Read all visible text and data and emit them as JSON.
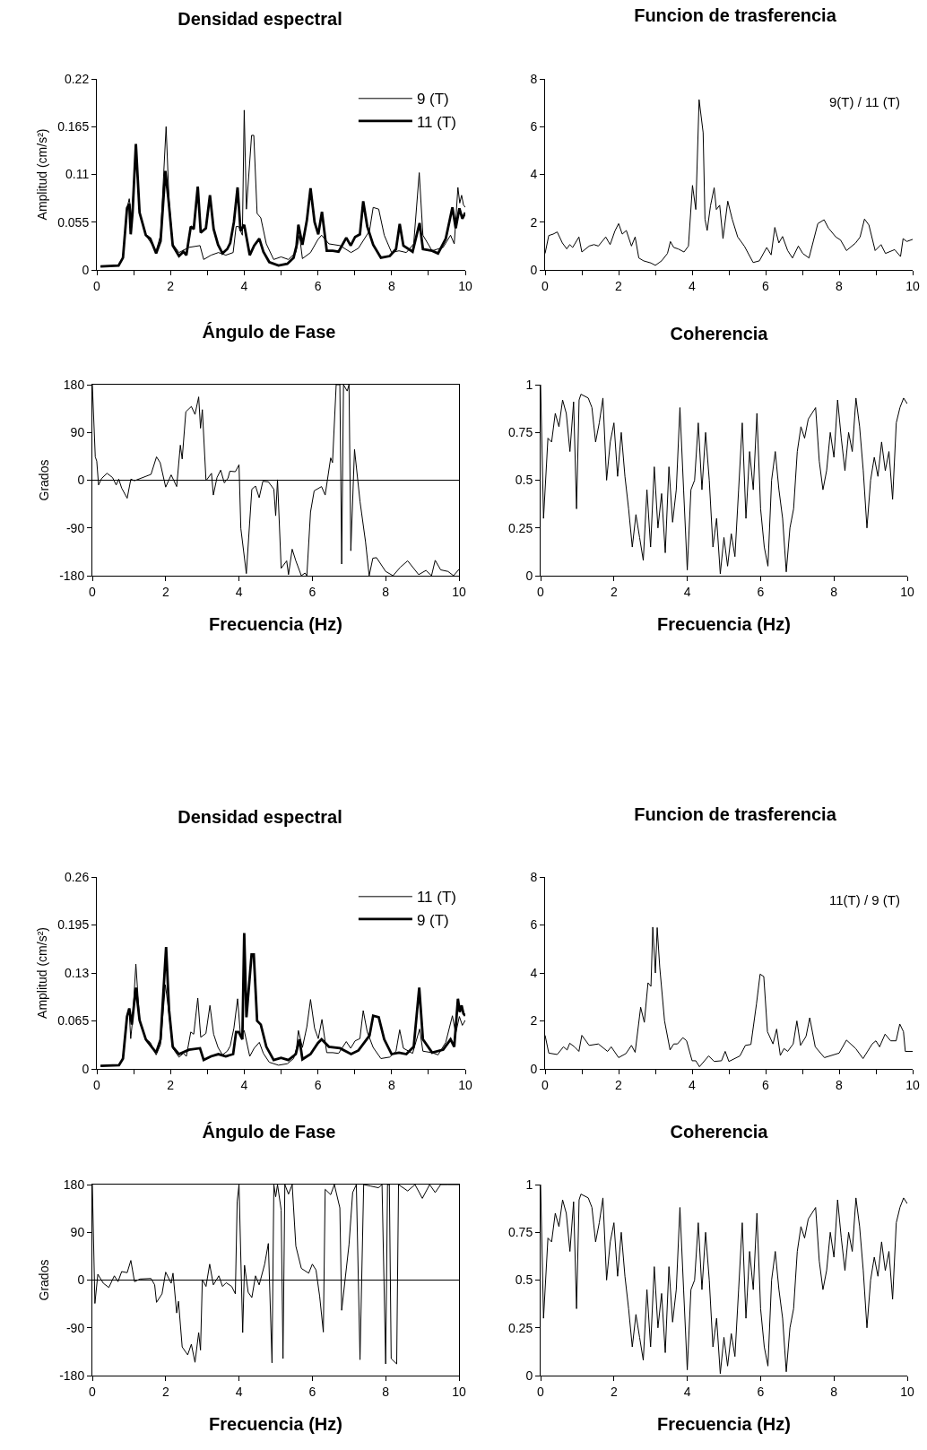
{
  "chart_data": [
    {
      "type": "line",
      "title": "Densidad espectral",
      "ylabel": "Amplitud (cm/s²)",
      "xlim": [
        0,
        10
      ],
      "xticks": [
        0,
        {
          "value": 1,
          "label": null
        },
        2,
        {
          "value": 3,
          "label": null
        },
        4,
        {
          "value": 5,
          "label": null
        },
        6,
        {
          "value": 7,
          "label": null
        },
        8,
        {
          "value": 9,
          "label": null
        },
        10
      ],
      "ylim": [
        0,
        0.22
      ],
      "yticks": [
        0,
        0.055,
        0.11,
        0.165,
        0.22
      ],
      "legend": "top right",
      "series": [
        {
          "name": "9 (T)",
          "color": "#000000",
          "x": [
            0.1,
            0.6,
            0.71,
            0.82,
            0.88,
            0.95,
            1.06,
            1.16,
            1.33,
            1.61,
            1.73,
            1.88,
            1.96,
            2.06,
            2.23,
            2.5,
            2.8,
            2.9,
            3.1,
            3.3,
            3.5,
            3.7,
            3.78,
            3.85,
            3.95,
            4.0,
            4.06,
            4.2,
            4.26,
            4.35,
            4.45,
            4.6,
            4.8,
            5.0,
            5.2,
            5.4,
            5.5,
            5.58,
            5.8,
            6.0,
            6.1,
            6.3,
            6.6,
            6.9,
            7.1,
            7.4,
            7.5,
            7.65,
            7.8,
            8.0,
            8.2,
            8.4,
            8.6,
            8.75,
            8.85,
            9.1,
            9.4,
            9.6,
            9.7,
            9.8,
            9.85,
            9.9,
            9.95,
            10
          ],
          "values": [
            0.004,
            0.005,
            0.014,
            0.071,
            0.082,
            0.06,
            0.14,
            0.066,
            0.04,
            0.022,
            0.04,
            0.165,
            0.08,
            0.03,
            0.02,
            0.026,
            0.028,
            0.012,
            0.017,
            0.02,
            0.017,
            0.02,
            0.05,
            0.05,
            0.04,
            0.184,
            0.07,
            0.155,
            0.155,
            0.065,
            0.06,
            0.03,
            0.012,
            0.015,
            0.012,
            0.02,
            0.04,
            0.013,
            0.02,
            0.035,
            0.04,
            0.03,
            0.028,
            0.02,
            0.025,
            0.045,
            0.072,
            0.07,
            0.04,
            0.02,
            0.022,
            0.02,
            0.03,
            0.112,
            0.04,
            0.022,
            0.026,
            0.04,
            0.03,
            0.095,
            0.077,
            0.086,
            0.075,
            0.072
          ]
        },
        {
          "name": "11 (T)",
          "color": "#000000",
          "x": [
            0.1,
            0.59,
            0.71,
            0.82,
            0.88,
            0.92,
            0.97,
            1.06,
            1.16,
            1.33,
            1.45,
            1.61,
            1.73,
            1.86,
            1.94,
            2.06,
            2.23,
            2.35,
            2.43,
            2.55,
            2.63,
            2.74,
            2.82,
            2.96,
            3.07,
            3.17,
            3.29,
            3.41,
            3.54,
            3.62,
            3.72,
            3.82,
            3.9,
            4.0,
            4.15,
            4.27,
            4.41,
            4.52,
            4.68,
            4.93,
            5.17,
            5.34,
            5.42,
            5.47,
            5.58,
            5.7,
            5.8,
            5.91,
            6.01,
            6.11,
            6.24,
            6.4,
            6.56,
            6.77,
            6.89,
            7.01,
            7.14,
            7.23,
            7.34,
            7.5,
            7.71,
            7.95,
            8.12,
            8.22,
            8.32,
            8.57,
            8.76,
            8.85,
            9.1,
            9.26,
            9.47,
            9.65,
            9.74,
            9.84,
            9.92,
            10
          ],
          "values": [
            0.004,
            0.005,
            0.014,
            0.071,
            0.076,
            0.041,
            0.066,
            0.145,
            0.066,
            0.04,
            0.036,
            0.019,
            0.033,
            0.114,
            0.083,
            0.028,
            0.016,
            0.021,
            0.017,
            0.05,
            0.047,
            0.096,
            0.043,
            0.048,
            0.086,
            0.047,
            0.029,
            0.019,
            0.024,
            0.031,
            0.055,
            0.095,
            0.045,
            0.052,
            0.017,
            0.028,
            0.036,
            0.021,
            0.009,
            0.005,
            0.007,
            0.014,
            0.028,
            0.052,
            0.029,
            0.057,
            0.094,
            0.055,
            0.041,
            0.067,
            0.022,
            0.022,
            0.021,
            0.037,
            0.028,
            0.038,
            0.041,
            0.079,
            0.05,
            0.029,
            0.014,
            0.016,
            0.024,
            0.053,
            0.028,
            0.021,
            0.054,
            0.024,
            0.022,
            0.019,
            0.036,
            0.072,
            0.048,
            0.071,
            0.059,
            0.066
          ]
        }
      ]
    },
    {
      "type": "line",
      "title": "Funcion de trasferencia",
      "annotations": [
        "9(T) / 11 (T)"
      ],
      "xlim": [
        0,
        10
      ],
      "xticks": [
        0,
        {
          "value": 1,
          "label": null
        },
        2,
        {
          "value": 3,
          "label": null
        },
        4,
        {
          "value": 5,
          "label": null
        },
        6,
        {
          "value": 7,
          "label": null
        },
        8,
        {
          "value": 9,
          "label": null
        },
        10
      ],
      "ylim": [
        0,
        8
      ],
      "yticks": [
        0,
        2,
        4,
        6,
        8
      ],
      "x": [
        0,
        0.1,
        0.22,
        0.33,
        0.47,
        0.59,
        0.67,
        0.75,
        0.92,
        1.0,
        1.2,
        1.33,
        1.45,
        1.65,
        1.77,
        1.9,
        2.0,
        2.1,
        2.21,
        2.35,
        2.45,
        2.55,
        2.68,
        2.88,
        3.0,
        3.17,
        3.33,
        3.41,
        3.5,
        3.62,
        3.78,
        3.9,
        4.01,
        4.1,
        4.19,
        4.3,
        4.35,
        4.41,
        4.5,
        4.6,
        4.66,
        4.75,
        4.84,
        4.97,
        5.09,
        5.24,
        5.42,
        5.66,
        5.83,
        6.03,
        6.15,
        6.25,
        6.36,
        6.46,
        6.6,
        6.73,
        6.89,
        7.01,
        7.18,
        7.42,
        7.59,
        7.71,
        7.91,
        8.04,
        8.2,
        8.45,
        8.57,
        8.69,
        8.81,
        8.98,
        9.14,
        9.26,
        9.51,
        9.67,
        9.74,
        9.84,
        10
      ],
      "series": [
        {
          "color": "#000000",
          "values": [
            0.69,
            1.44,
            1.5,
            1.59,
            1.13,
            0.88,
            1.06,
            0.94,
            1.38,
            0.75,
            1.0,
            1.06,
            1.0,
            1.38,
            1.06,
            1.63,
            1.94,
            1.5,
            1.65,
            1.0,
            1.38,
            0.5,
            0.38,
            0.29,
            0.19,
            0.38,
            0.69,
            1.19,
            0.94,
            0.88,
            0.75,
            1.0,
            3.54,
            2.53,
            7.13,
            5.75,
            2.13,
            1.65,
            2.69,
            3.44,
            2.53,
            2.71,
            1.31,
            2.88,
            2.13,
            1.38,
            1.0,
            0.31,
            0.38,
            0.94,
            0.63,
            1.78,
            1.13,
            1.4,
            0.81,
            0.5,
            1.0,
            0.69,
            0.5,
            1.94,
            2.1,
            1.75,
            1.38,
            1.25,
            0.81,
            1.13,
            1.38,
            2.13,
            1.88,
            0.81,
            1.06,
            0.69,
            0.85,
            0.56,
            1.31,
            1.19,
            1.28
          ]
        }
      ]
    },
    {
      "type": "line",
      "title": "Ángulo de Fase",
      "xlabel": "Frecuencia (Hz)",
      "ylabel": "Grados",
      "xlim": [
        0,
        10
      ],
      "xticks": [
        0,
        2,
        4,
        6,
        8,
        10
      ],
      "ylim": [
        -180,
        180
      ],
      "yticks": [
        -180,
        -90,
        0,
        90,
        180
      ],
      "ref_lines": [
        {
          "axis": "y",
          "value": 0
        }
      ],
      "x": [
        0,
        0.08,
        0.12,
        0.17,
        0.25,
        0.4,
        0.55,
        0.65,
        0.72,
        0.8,
        0.95,
        1.05,
        1.15,
        1.6,
        1.75,
        1.85,
        2.0,
        2.15,
        2.3,
        2.4,
        2.45,
        2.55,
        2.7,
        2.8,
        2.9,
        2.95,
        3.0,
        3.1,
        3.25,
        3.3,
        3.4,
        3.5,
        3.6,
        3.7,
        3.75,
        3.9,
        4.0,
        4.05,
        4.2,
        4.35,
        4.45,
        4.55,
        4.65,
        4.8,
        4.95,
        5.0,
        5.05,
        5.15,
        5.3,
        5.35,
        5.45,
        5.55,
        5.7,
        5.8,
        5.85,
        5.95,
        6.05,
        6.25,
        6.35,
        6.5,
        6.55,
        6.65,
        6.75,
        6.8,
        6.85,
        6.95,
        7.0,
        7.05,
        7.15,
        7.3,
        7.45,
        7.55,
        7.65,
        7.75,
        8.0,
        8.2,
        8.4,
        8.6,
        8.9,
        9.1,
        9.25,
        9.35,
        9.5,
        9.7,
        9.85,
        10
      ],
      "series": [
        {
          "color": "#000000",
          "values": [
            180,
            44,
            36,
            -9,
            3,
            13,
            5,
            -9,
            2,
            -15,
            -34,
            2,
            -1,
            11,
            44,
            33,
            -13,
            10,
            -12,
            66,
            40,
            129,
            139,
            124,
            157,
            98,
            133,
            -1,
            13,
            -28,
            5,
            19,
            -5,
            4,
            17,
            16,
            29,
            -91,
            -176,
            -17,
            -11,
            -33,
            -2,
            -3,
            -17,
            -67,
            1,
            -166,
            -152,
            -178,
            -130,
            -152,
            -180,
            -175,
            -180,
            -60,
            -20,
            -12,
            -28,
            42,
            33,
            180,
            180,
            -158,
            180,
            168,
            180,
            -133,
            58,
            -40,
            -116,
            -180,
            -147,
            -146,
            -172,
            -180,
            -164,
            -152,
            -178,
            -170,
            -180,
            -151,
            -169,
            -172,
            -180,
            -168
          ]
        }
      ]
    },
    {
      "type": "line",
      "title": "Coherencia",
      "xlabel": "Frecuencia (Hz)",
      "xlim": [
        0,
        10
      ],
      "xticks": [
        0,
        2,
        4,
        6,
        8,
        10
      ],
      "ylim": [
        0,
        1
      ],
      "yticks": [
        0,
        0.25,
        0.5,
        0.75,
        1
      ],
      "x": [
        0,
        0.08,
        0.2,
        0.3,
        0.4,
        0.5,
        0.6,
        0.7,
        0.8,
        0.9,
        0.98,
        1.05,
        1.1,
        1.3,
        1.4,
        1.5,
        1.6,
        1.7,
        1.8,
        1.9,
        2.0,
        2.1,
        2.2,
        2.3,
        2.4,
        2.5,
        2.6,
        2.7,
        2.8,
        2.9,
        3.0,
        3.1,
        3.2,
        3.3,
        3.4,
        3.5,
        3.6,
        3.7,
        3.8,
        3.9,
        4.0,
        4.1,
        4.2,
        4.3,
        4.4,
        4.5,
        4.6,
        4.7,
        4.8,
        4.9,
        5.0,
        5.1,
        5.2,
        5.3,
        5.4,
        5.5,
        5.6,
        5.7,
        5.8,
        5.9,
        6.0,
        6.1,
        6.2,
        6.3,
        6.4,
        6.5,
        6.6,
        6.7,
        6.8,
        6.9,
        7.0,
        7.1,
        7.2,
        7.3,
        7.4,
        7.5,
        7.6,
        7.7,
        7.8,
        7.9,
        8.0,
        8.1,
        8.2,
        8.3,
        8.4,
        8.5,
        8.6,
        8.7,
        8.8,
        8.9,
        9.0,
        9.1,
        9.2,
        9.3,
        9.4,
        9.5,
        9.6,
        9.7,
        9.8,
        9.9,
        10
      ],
      "series": [
        {
          "color": "#000000",
          "values": [
            1,
            0.3,
            0.72,
            0.7,
            0.85,
            0.78,
            0.92,
            0.85,
            0.65,
            0.91,
            0.35,
            0.92,
            0.95,
            0.93,
            0.88,
            0.7,
            0.8,
            0.93,
            0.5,
            0.7,
            0.8,
            0.52,
            0.75,
            0.52,
            0.35,
            0.15,
            0.32,
            0.2,
            0.08,
            0.45,
            0.15,
            0.57,
            0.25,
            0.43,
            0.12,
            0.57,
            0.28,
            0.45,
            0.88,
            0.45,
            0.03,
            0.45,
            0.5,
            0.8,
            0.45,
            0.75,
            0.5,
            0.15,
            0.3,
            0.01,
            0.2,
            0.05,
            0.22,
            0.1,
            0.45,
            0.8,
            0.3,
            0.65,
            0.45,
            0.85,
            0.35,
            0.15,
            0.05,
            0.5,
            0.65,
            0.45,
            0.3,
            0.02,
            0.25,
            0.35,
            0.65,
            0.78,
            0.72,
            0.82,
            0.85,
            0.88,
            0.6,
            0.45,
            0.55,
            0.75,
            0.62,
            0.92,
            0.72,
            0.55,
            0.75,
            0.65,
            0.93,
            0.78,
            0.55,
            0.25,
            0.5,
            0.62,
            0.52,
            0.7,
            0.55,
            0.65,
            0.4,
            0.8,
            0.88,
            0.93,
            0.9
          ]
        }
      ]
    },
    {
      "type": "line",
      "title": "Densidad espectral",
      "ylabel": "Amplitud (cm/s²)",
      "xlim": [
        0,
        10
      ],
      "xticks": [
        0,
        {
          "value": 1,
          "label": null
        },
        2,
        {
          "value": 3,
          "label": null
        },
        4,
        {
          "value": 5,
          "label": null
        },
        6,
        {
          "value": 7,
          "label": null
        },
        8,
        {
          "value": 9,
          "label": null
        },
        10
      ],
      "ylim": [
        0,
        0.26
      ],
      "yticks": [
        0,
        0.065,
        0.13,
        0.195,
        0.26
      ],
      "legend": "top right",
      "series": [
        {
          "name": "11 (T)",
          "color": "#000000",
          "x": [
            0.1,
            0.59,
            0.71,
            0.82,
            0.88,
            0.92,
            0.97,
            1.06,
            1.16,
            1.33,
            1.45,
            1.61,
            1.73,
            1.86,
            1.94,
            2.06,
            2.23,
            2.35,
            2.43,
            2.55,
            2.63,
            2.74,
            2.82,
            2.96,
            3.07,
            3.17,
            3.29,
            3.41,
            3.54,
            3.62,
            3.72,
            3.82,
            3.9,
            4.0,
            4.15,
            4.27,
            4.41,
            4.52,
            4.68,
            4.93,
            5.17,
            5.34,
            5.42,
            5.47,
            5.58,
            5.7,
            5.8,
            5.91,
            6.01,
            6.11,
            6.24,
            6.4,
            6.56,
            6.77,
            6.89,
            7.01,
            7.14,
            7.23,
            7.34,
            7.5,
            7.71,
            7.95,
            8.12,
            8.22,
            8.32,
            8.57,
            8.76,
            8.85,
            9.1,
            9.26,
            9.47,
            9.65,
            9.74,
            9.84,
            9.92,
            10
          ],
          "values": [
            0.004,
            0.005,
            0.014,
            0.071,
            0.076,
            0.041,
            0.066,
            0.142,
            0.066,
            0.04,
            0.036,
            0.019,
            0.033,
            0.114,
            0.083,
            0.028,
            0.016,
            0.021,
            0.017,
            0.05,
            0.047,
            0.096,
            0.043,
            0.048,
            0.086,
            0.047,
            0.029,
            0.019,
            0.024,
            0.031,
            0.055,
            0.095,
            0.045,
            0.052,
            0.017,
            0.028,
            0.036,
            0.021,
            0.009,
            0.005,
            0.007,
            0.014,
            0.028,
            0.052,
            0.029,
            0.057,
            0.094,
            0.055,
            0.041,
            0.067,
            0.022,
            0.022,
            0.021,
            0.037,
            0.028,
            0.038,
            0.041,
            0.079,
            0.05,
            0.029,
            0.014,
            0.016,
            0.024,
            0.053,
            0.028,
            0.021,
            0.054,
            0.024,
            0.022,
            0.019,
            0.036,
            0.072,
            0.048,
            0.071,
            0.059,
            0.066
          ]
        },
        {
          "name": "9 (T)",
          "color": "#000000",
          "x": [
            0.1,
            0.6,
            0.71,
            0.82,
            0.88,
            0.95,
            1.06,
            1.16,
            1.33,
            1.61,
            1.73,
            1.88,
            1.96,
            2.06,
            2.23,
            2.5,
            2.8,
            2.9,
            3.1,
            3.3,
            3.5,
            3.7,
            3.78,
            3.85,
            3.95,
            4.0,
            4.06,
            4.2,
            4.26,
            4.35,
            4.45,
            4.6,
            4.8,
            5.0,
            5.2,
            5.4,
            5.5,
            5.58,
            5.8,
            6.0,
            6.1,
            6.3,
            6.6,
            6.9,
            7.1,
            7.4,
            7.5,
            7.65,
            7.8,
            8.0,
            8.2,
            8.4,
            8.6,
            8.75,
            8.85,
            9.1,
            9.4,
            9.6,
            9.7,
            9.8,
            9.85,
            9.9,
            9.95,
            10
          ],
          "values": [
            0.004,
            0.005,
            0.014,
            0.071,
            0.082,
            0.06,
            0.11,
            0.066,
            0.04,
            0.022,
            0.04,
            0.165,
            0.08,
            0.03,
            0.02,
            0.026,
            0.028,
            0.012,
            0.017,
            0.02,
            0.017,
            0.02,
            0.05,
            0.05,
            0.04,
            0.184,
            0.07,
            0.155,
            0.155,
            0.065,
            0.06,
            0.03,
            0.012,
            0.015,
            0.012,
            0.02,
            0.04,
            0.013,
            0.02,
            0.035,
            0.04,
            0.03,
            0.028,
            0.02,
            0.025,
            0.045,
            0.072,
            0.07,
            0.04,
            0.02,
            0.022,
            0.02,
            0.03,
            0.11,
            0.04,
            0.022,
            0.026,
            0.04,
            0.03,
            0.095,
            0.077,
            0.086,
            0.075,
            0.072
          ]
        }
      ]
    },
    {
      "type": "line",
      "title": "Funcion de trasferencia",
      "annotations": [
        "11(T) / 9 (T)"
      ],
      "xlim": [
        0,
        10
      ],
      "xticks": [
        0,
        {
          "value": 1,
          "label": null
        },
        2,
        {
          "value": 3,
          "label": null
        },
        4,
        {
          "value": 5,
          "label": null
        },
        6,
        {
          "value": 7,
          "label": null
        },
        8,
        {
          "value": 9,
          "label": null
        },
        10
      ],
      "ylim": [
        0,
        8
      ],
      "yticks": [
        0,
        2,
        4,
        6,
        8
      ],
      "x": [
        0,
        0.1,
        0.33,
        0.5,
        0.6,
        0.67,
        0.8,
        0.92,
        1.0,
        1.2,
        1.45,
        1.7,
        1.8,
        2.0,
        2.2,
        2.35,
        2.45,
        2.6,
        2.7,
        2.8,
        2.88,
        2.93,
        3.0,
        3.05,
        3.12,
        3.25,
        3.4,
        3.5,
        3.6,
        3.75,
        3.85,
        4.0,
        4.1,
        4.2,
        4.45,
        4.6,
        4.8,
        4.9,
        5.0,
        5.3,
        5.45,
        5.6,
        5.75,
        5.85,
        5.95,
        6.05,
        6.2,
        6.3,
        6.4,
        6.5,
        6.6,
        6.75,
        6.85,
        6.95,
        7.1,
        7.2,
        7.35,
        7.6,
        8.0,
        8.2,
        8.45,
        8.65,
        8.9,
        9.0,
        9.1,
        9.25,
        9.4,
        9.55,
        9.65,
        9.75,
        9.8,
        10
      ],
      "series": [
        {
          "color": "#000000",
          "values": [
            1.4,
            0.66,
            0.6,
            0.92,
            0.79,
            1.07,
            0.92,
            0.73,
            1.4,
            0.98,
            1.04,
            0.73,
            0.92,
            0.47,
            0.64,
            0.98,
            0.69,
            2.57,
            1.94,
            3.59,
            3.44,
            5.91,
            4.0,
            5.89,
            4.23,
            2.0,
            0.79,
            1.04,
            1.04,
            1.3,
            1.17,
            0.34,
            0.34,
            0.09,
            0.54,
            0.31,
            0.34,
            0.73,
            0.31,
            0.54,
            0.98,
            1.02,
            2.7,
            3.95,
            3.85,
            1.55,
            1.04,
            1.66,
            0.56,
            0.85,
            0.73,
            1.04,
            2.0,
            0.98,
            1.36,
            2.13,
            0.92,
            0.47,
            0.66,
            1.2,
            0.85,
            0.43,
            1.04,
            1.17,
            0.92,
            1.45,
            1.17,
            1.17,
            1.87,
            1.55,
            0.73,
            0.73
          ]
        }
      ]
    },
    {
      "type": "line",
      "title": "Ángulo de Fase",
      "xlabel": "Frecuencia (Hz)",
      "ylabel": "Grados",
      "xlim": [
        0,
        10
      ],
      "xticks": [
        0,
        2,
        4,
        6,
        8,
        10
      ],
      "ylim": [
        -180,
        180
      ],
      "yticks": [
        -180,
        -90,
        0,
        90,
        180
      ],
      "ref_lines": [
        {
          "axis": "y",
          "value": 0
        }
      ],
      "x": [
        0,
        0.07,
        0.15,
        0.3,
        0.45,
        0.6,
        0.7,
        0.8,
        0.95,
        1.05,
        1.15,
        1.3,
        1.6,
        1.7,
        1.75,
        1.9,
        2.0,
        2.15,
        2.2,
        2.3,
        2.35,
        2.45,
        2.6,
        2.7,
        2.8,
        2.9,
        2.95,
        3.0,
        3.1,
        3.2,
        3.3,
        3.45,
        3.55,
        3.65,
        3.8,
        3.9,
        3.95,
        4.0,
        4.1,
        4.15,
        4.25,
        4.35,
        4.45,
        4.55,
        4.7,
        4.8,
        4.9,
        4.95,
        5.0,
        5.05,
        5.15,
        5.2,
        5.25,
        5.35,
        5.45,
        5.55,
        5.7,
        5.9,
        6.0,
        6.1,
        6.2,
        6.3,
        6.35,
        6.5,
        6.6,
        6.75,
        6.8,
        7.0,
        7.1,
        7.2,
        7.3,
        7.4,
        7.6,
        7.8,
        7.9,
        8.0,
        8.05,
        8.1,
        8.15,
        8.3,
        8.35,
        8.6,
        8.8,
        9.0,
        9.2,
        9.35,
        9.5,
        9.7,
        10
      ],
      "series": [
        {
          "color": "#000000",
          "values": [
            180,
            -44,
            11,
            -6,
            -14,
            8,
            -3,
            16,
            14,
            37,
            -3,
            2,
            3,
            -9,
            -42,
            -26,
            15,
            -6,
            13,
            -62,
            -40,
            -126,
            -141,
            -121,
            -155,
            -99,
            -132,
            1,
            -12,
            30,
            -9,
            8,
            -12,
            -5,
            -12,
            -26,
            148,
            180,
            -99,
            28,
            -23,
            -33,
            8,
            -9,
            30,
            69,
            -156,
            180,
            157,
            180,
            132,
            -148,
            180,
            162,
            180,
            64,
            22,
            13,
            30,
            19,
            -31,
            -98,
            171,
            161,
            180,
            136,
            -57,
            67,
            165,
            180,
            -150,
            180,
            177,
            174,
            180,
            -158,
            180,
            180,
            -148,
            -158,
            180,
            168,
            180,
            154,
            180,
            165,
            180,
            180,
            180
          ]
        }
      ]
    },
    {
      "type": "line",
      "title": "Coherencia",
      "xlabel": "Frecuencia (Hz)",
      "xlim": [
        0,
        10
      ],
      "xticks": [
        0,
        2,
        4,
        6,
        8,
        10
      ],
      "ylim": [
        0,
        1
      ],
      "yticks": [
        0,
        0.25,
        0.5,
        0.75,
        1
      ],
      "x": [
        0,
        0.08,
        0.2,
        0.3,
        0.4,
        0.5,
        0.6,
        0.7,
        0.8,
        0.9,
        0.98,
        1.05,
        1.1,
        1.3,
        1.4,
        1.5,
        1.6,
        1.7,
        1.8,
        1.9,
        2.0,
        2.1,
        2.2,
        2.3,
        2.4,
        2.5,
        2.6,
        2.7,
        2.8,
        2.9,
        3.0,
        3.1,
        3.2,
        3.3,
        3.4,
        3.5,
        3.6,
        3.7,
        3.8,
        3.9,
        4.0,
        4.1,
        4.2,
        4.3,
        4.4,
        4.5,
        4.6,
        4.7,
        4.8,
        4.9,
        5.0,
        5.1,
        5.2,
        5.3,
        5.4,
        5.5,
        5.6,
        5.7,
        5.8,
        5.9,
        6.0,
        6.1,
        6.2,
        6.3,
        6.4,
        6.5,
        6.6,
        6.7,
        6.8,
        6.9,
        7.0,
        7.1,
        7.2,
        7.3,
        7.4,
        7.5,
        7.6,
        7.7,
        7.8,
        7.9,
        8.0,
        8.1,
        8.2,
        8.3,
        8.4,
        8.5,
        8.6,
        8.7,
        8.8,
        8.9,
        9.0,
        9.1,
        9.2,
        9.3,
        9.4,
        9.5,
        9.6,
        9.7,
        9.8,
        9.9,
        10
      ],
      "series": [
        {
          "color": "#000000",
          "values": [
            1,
            0.3,
            0.72,
            0.7,
            0.85,
            0.78,
            0.92,
            0.85,
            0.65,
            0.91,
            0.35,
            0.92,
            0.95,
            0.93,
            0.88,
            0.7,
            0.8,
            0.93,
            0.5,
            0.7,
            0.8,
            0.52,
            0.75,
            0.52,
            0.35,
            0.15,
            0.32,
            0.2,
            0.08,
            0.45,
            0.15,
            0.57,
            0.25,
            0.43,
            0.12,
            0.57,
            0.28,
            0.45,
            0.88,
            0.45,
            0.03,
            0.45,
            0.5,
            0.8,
            0.45,
            0.75,
            0.5,
            0.15,
            0.3,
            0.01,
            0.2,
            0.05,
            0.22,
            0.1,
            0.45,
            0.8,
            0.3,
            0.65,
            0.45,
            0.85,
            0.35,
            0.15,
            0.05,
            0.5,
            0.65,
            0.45,
            0.3,
            0.02,
            0.25,
            0.35,
            0.65,
            0.78,
            0.72,
            0.82,
            0.85,
            0.88,
            0.6,
            0.45,
            0.55,
            0.75,
            0.62,
            0.92,
            0.72,
            0.55,
            0.75,
            0.65,
            0.93,
            0.78,
            0.55,
            0.25,
            0.5,
            0.62,
            0.52,
            0.7,
            0.55,
            0.65,
            0.4,
            0.8,
            0.88,
            0.93,
            0.9
          ]
        }
      ]
    }
  ]
}
